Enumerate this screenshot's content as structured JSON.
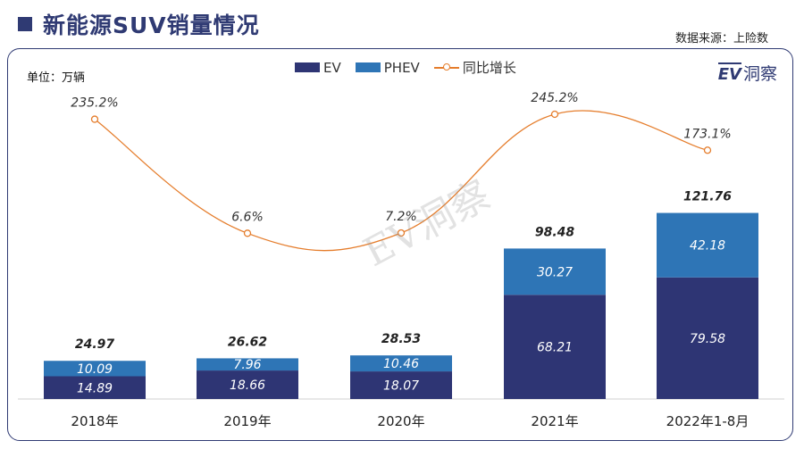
{
  "header": {
    "title": "新能源SUV销量情况",
    "source_note": "数据来源：上险数"
  },
  "unit_label": "单位：万辆",
  "brand": {
    "logo_mark": "EV",
    "logo_text": "洞察"
  },
  "watermark": "EV洞察",
  "colors": {
    "ev": "#2e3574",
    "phev": "#2e75b6",
    "growth": "#e57d2c"
  },
  "chart_data": {
    "type": "bar",
    "stacked": true,
    "categories": [
      "2018年",
      "2019年",
      "2020年",
      "2021年",
      "2022年1-8月"
    ],
    "series": [
      {
        "name": "EV",
        "values": [
          14.89,
          18.66,
          18.07,
          68.21,
          79.58
        ]
      },
      {
        "name": "PHEV",
        "values": [
          10.09,
          7.96,
          10.46,
          30.27,
          42.18
        ]
      }
    ],
    "totals": [
      24.97,
      26.62,
      28.53,
      98.48,
      121.76
    ],
    "line_series": {
      "name": "同比增长",
      "values": [
        235.2,
        6.6,
        7.2,
        245.2,
        173.1
      ],
      "labels": [
        "235.2%",
        "6.6%",
        "7.2%",
        "245.2%",
        "173.1%"
      ]
    },
    "value_labels": {
      "EV": [
        "14.89",
        "18.66",
        "18.07",
        "68.21",
        "79.58"
      ],
      "PHEV": [
        "10.09",
        "7.96",
        "10.46",
        "30.27",
        "42.18"
      ],
      "totals": [
        "24.97",
        "26.62",
        "28.53",
        "98.48",
        "121.76"
      ]
    },
    "legend_position": "top-center",
    "grid": false
  }
}
